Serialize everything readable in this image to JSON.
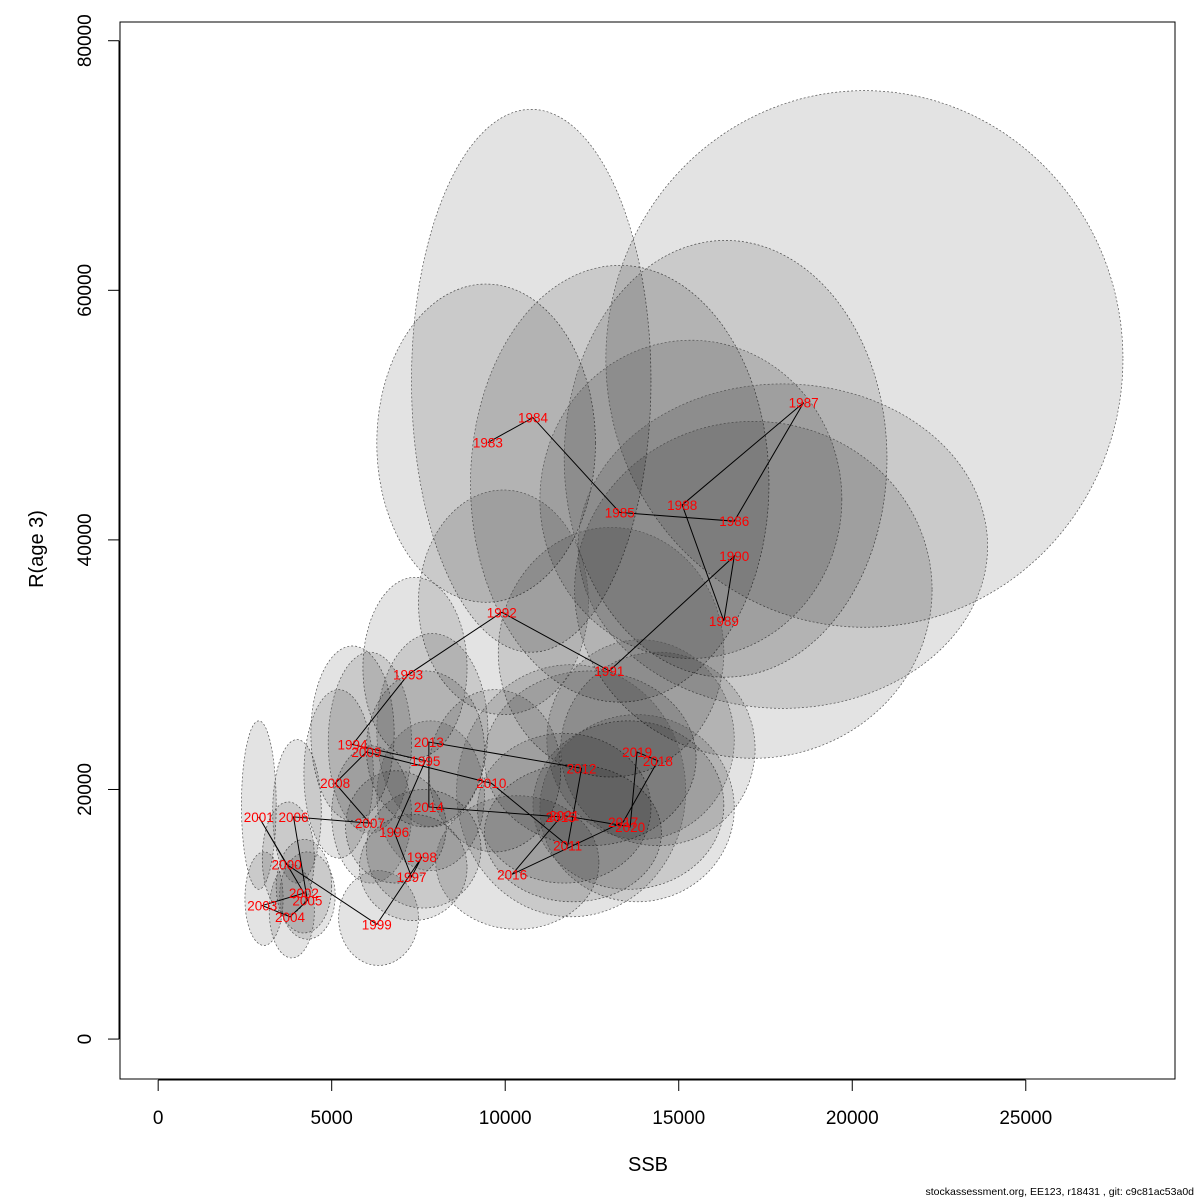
{
  "footer_text": "stockassessment.org, EE123, r18431 , git: c9c81ac53a0d",
  "chart_data": {
    "type": "scatter",
    "xlabel": "SSB",
    "ylabel": "R(age 3)",
    "xlim": [
      -1100,
      29300
    ],
    "ylim": [
      -3200,
      81500
    ],
    "x_ticks": [
      0,
      5000,
      10000,
      15000,
      20000,
      25000
    ],
    "y_ticks": [
      0,
      20000,
      40000,
      60000,
      80000
    ],
    "grid": false,
    "colors": {
      "label": "#ff0000",
      "path": "#000000",
      "ellipse_fill": "#000000",
      "ellipse_stroke": "#555555"
    },
    "ellipse_opacity": 0.11,
    "points": [
      {
        "year": "1983",
        "ssb": 9500,
        "r": 47800,
        "ssb_lo": 6300,
        "ssb_hi": 12600,
        "r_lo": 35000,
        "r_hi": 60500
      },
      {
        "year": "1984",
        "ssb": 10800,
        "r": 49800,
        "ssb_lo": 7300,
        "ssb_hi": 14200,
        "r_lo": 31000,
        "r_hi": 74500
      },
      {
        "year": "1985",
        "ssb": 13300,
        "r": 42200,
        "ssb_lo": 9000,
        "ssb_hi": 17600,
        "r_lo": 27000,
        "r_hi": 62000
      },
      {
        "year": "1986",
        "ssb": 16600,
        "r": 41500,
        "ssb_lo": 11700,
        "ssb_hi": 21000,
        "r_lo": 29000,
        "r_hi": 64000
      },
      {
        "year": "1987",
        "ssb": 18600,
        "r": 51000,
        "ssb_lo": 12900,
        "ssb_hi": 27800,
        "r_lo": 33000,
        "r_hi": 76000
      },
      {
        "year": "1988",
        "ssb": 15100,
        "r": 42800,
        "ssb_lo": 11000,
        "ssb_hi": 19700,
        "r_lo": 30500,
        "r_hi": 56000
      },
      {
        "year": "1989",
        "ssb": 16300,
        "r": 33500,
        "ssb_lo": 12000,
        "ssb_hi": 22300,
        "r_lo": 22500,
        "r_hi": 49500
      },
      {
        "year": "1990",
        "ssb": 16600,
        "r": 38700,
        "ssb_lo": 12100,
        "ssb_hi": 23900,
        "r_lo": 26500,
        "r_hi": 52500
      },
      {
        "year": "1991",
        "ssb": 13000,
        "r": 29500,
        "ssb_lo": 9800,
        "ssb_hi": 16300,
        "r_lo": 21000,
        "r_hi": 41000
      },
      {
        "year": "1992",
        "ssb": 9900,
        "r": 34200,
        "ssb_lo": 7500,
        "ssb_hi": 12400,
        "r_lo": 26000,
        "r_hi": 44000
      },
      {
        "year": "1993",
        "ssb": 7200,
        "r": 29200,
        "ssb_lo": 5900,
        "ssb_hi": 8900,
        "r_lo": 22500,
        "r_hi": 37000
      },
      {
        "year": "1994",
        "ssb": 5600,
        "r": 23600,
        "ssb_lo": 4400,
        "ssb_hi": 6800,
        "r_lo": 17500,
        "r_hi": 31500
      },
      {
        "year": "1995",
        "ssb": 7700,
        "r": 22300,
        "ssb_lo": 6000,
        "ssb_hi": 9400,
        "r_lo": 17000,
        "r_hi": 29500
      },
      {
        "year": "1996",
        "ssb": 6800,
        "r": 16600,
        "ssb_lo": 5400,
        "ssb_hi": 8300,
        "r_lo": 12500,
        "r_hi": 21500
      },
      {
        "year": "1997",
        "ssb": 7300,
        "r": 13000,
        "ssb_lo": 5800,
        "ssb_hi": 8900,
        "r_lo": 9500,
        "r_hi": 18000
      },
      {
        "year": "1998",
        "ssb": 7600,
        "r": 14600,
        "ssb_lo": 6000,
        "ssb_hi": 9300,
        "r_lo": 10500,
        "r_hi": 20000
      },
      {
        "year": "1999",
        "ssb": 6300,
        "r": 9200,
        "ssb_lo": 5200,
        "ssb_hi": 7500,
        "r_lo": 5900,
        "r_hi": 13500
      },
      {
        "year": "2000",
        "ssb": 3700,
        "r": 14000,
        "ssb_lo": 3000,
        "ssb_hi": 4500,
        "r_lo": 10000,
        "r_hi": 19000
      },
      {
        "year": "2001",
        "ssb": 2900,
        "r": 17800,
        "ssb_lo": 2400,
        "ssb_hi": 3400,
        "r_lo": 12000,
        "r_hi": 25500
      },
      {
        "year": "2002",
        "ssb": 4200,
        "r": 11700,
        "ssb_lo": 3400,
        "ssb_hi": 5000,
        "r_lo": 8500,
        "r_hi": 16000
      },
      {
        "year": "2003",
        "ssb": 3000,
        "r": 10700,
        "ssb_lo": 2500,
        "ssb_hi": 3600,
        "r_lo": 7500,
        "r_hi": 15000
      },
      {
        "year": "2004",
        "ssb": 3800,
        "r": 9800,
        "ssb_lo": 3200,
        "ssb_hi": 4500,
        "r_lo": 6500,
        "r_hi": 14000
      },
      {
        "year": "2005",
        "ssb": 4300,
        "r": 11100,
        "ssb_lo": 3500,
        "ssb_hi": 5100,
        "r_lo": 8000,
        "r_hi": 15000
      },
      {
        "year": "2006",
        "ssb": 3900,
        "r": 17800,
        "ssb_lo": 3300,
        "ssb_hi": 4700,
        "r_lo": 12500,
        "r_hi": 24000
      },
      {
        "year": "2007",
        "ssb": 6100,
        "r": 17300,
        "ssb_lo": 5000,
        "ssb_hi": 7300,
        "r_lo": 12500,
        "r_hi": 23500
      },
      {
        "year": "2008",
        "ssb": 5100,
        "r": 20500,
        "ssb_lo": 4200,
        "ssb_hi": 6200,
        "r_lo": 14500,
        "r_hi": 28000
      },
      {
        "year": "2009",
        "ssb": 6000,
        "r": 23000,
        "ssb_lo": 4900,
        "ssb_hi": 7300,
        "r_lo": 16500,
        "r_hi": 31000
      },
      {
        "year": "2010",
        "ssb": 9600,
        "r": 20500,
        "ssb_lo": 7800,
        "ssb_hi": 11600,
        "r_lo": 15000,
        "r_hi": 28000
      },
      {
        "year": "2011",
        "ssb": 11800,
        "r": 15500,
        "ssb_lo": 9400,
        "ssb_hi": 14500,
        "r_lo": 11000,
        "r_hi": 22000
      },
      {
        "year": "2012",
        "ssb": 12200,
        "r": 21700,
        "ssb_lo": 9400,
        "ssb_hi": 15500,
        "r_lo": 15500,
        "r_hi": 29500
      },
      {
        "year": "2013",
        "ssb": 7800,
        "r": 23800,
        "ssb_lo": 6300,
        "ssb_hi": 9500,
        "r_lo": 17000,
        "r_hi": 32500
      },
      {
        "year": "2014",
        "ssb": 7800,
        "r": 18600,
        "ssb_lo": 6300,
        "ssb_hi": 9400,
        "r_lo": 13500,
        "r_hi": 25500
      },
      {
        "year": "2015",
        "ssb": 11600,
        "r": 17800,
        "ssb_lo": 9200,
        "ssb_hi": 14200,
        "r_lo": 12500,
        "r_hi": 24500
      },
      {
        "year": "2016",
        "ssb": 10200,
        "r": 13200,
        "ssb_lo": 8000,
        "ssb_hi": 12700,
        "r_lo": 8800,
        "r_hi": 19500
      },
      {
        "year": "2017",
        "ssb": 13400,
        "r": 17400,
        "ssb_lo": 10800,
        "ssb_hi": 16300,
        "r_lo": 12000,
        "r_hi": 25500
      },
      {
        "year": "2018",
        "ssb": 14400,
        "r": 22300,
        "ssb_lo": 11600,
        "ssb_hi": 17200,
        "r_lo": 15500,
        "r_hi": 31000
      },
      {
        "year": "2019",
        "ssb": 13800,
        "r": 23000,
        "ssb_lo": 11200,
        "ssb_hi": 16600,
        "r_lo": 16000,
        "r_hi": 32000
      },
      {
        "year": "2020",
        "ssb": 13600,
        "r": 17000,
        "ssb_lo": 11000,
        "ssb_hi": 16600,
        "r_lo": 11000,
        "r_hi": 26000
      },
      {
        "year": "2021",
        "ssb": 11700,
        "r": 17900,
        "ssb_lo": 8600,
        "ssb_hi": 15200,
        "r_lo": 9800,
        "r_hi": 30000
      }
    ]
  }
}
